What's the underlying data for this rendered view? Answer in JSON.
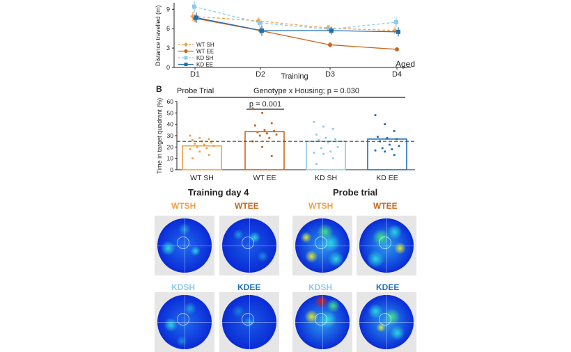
{
  "colors": {
    "wt_sh": "#f0a04b",
    "wt_ee": "#c8671e",
    "kd_sh": "#8ec9ec",
    "kd_ee": "#1f6fb4",
    "heat_low": "#0a2bd6",
    "heat_mid": "#2bd6e0",
    "heat_high": "#e01a1a"
  },
  "chart_data": [
    {
      "type": "line",
      "ylabel": "Distance travelled (m)",
      "xlabel": "Training",
      "categories": [
        "D1",
        "D2",
        "D3",
        "D4"
      ],
      "corner_label": "Aged",
      "ylim": [
        0,
        10
      ],
      "yticks": [
        0,
        3,
        6,
        9
      ],
      "series": [
        {
          "name": "WT SH",
          "values": [
            7.9,
            7.2,
            6.1,
            5.7
          ],
          "err": [
            0.7,
            0.6,
            0.5,
            0.6
          ],
          "color": "wt_sh",
          "marker": "diamond",
          "dashed": true
        },
        {
          "name": "WT EE",
          "values": [
            7.6,
            5.7,
            3.5,
            2.8
          ],
          "err": [
            0.6,
            0.5,
            0.4,
            0.2
          ],
          "color": "wt_ee",
          "marker": "circle",
          "dashed": false
        },
        {
          "name": "KD SH",
          "values": [
            9.4,
            6.9,
            5.9,
            7.0
          ],
          "err": [
            0.9,
            0.7,
            0.7,
            0.8
          ],
          "color": "kd_sh",
          "marker": "square",
          "dashed": true
        },
        {
          "name": "KD EE",
          "values": [
            7.7,
            5.7,
            5.7,
            5.5
          ],
          "err": [
            0.8,
            0.8,
            0.6,
            0.7
          ],
          "color": "kd_ee",
          "marker": "square",
          "dashed": false
        }
      ]
    },
    {
      "type": "bar",
      "panel_label": "B",
      "ylabel": "Time in target quadrant (%)",
      "categories": [
        "WT SH",
        "WT EE",
        "KD SH",
        "KD EE"
      ],
      "values": [
        21,
        33.5,
        25,
        27
      ],
      "ylim": [
        0,
        60
      ],
      "yticks": [
        0,
        10,
        20,
        30,
        40,
        50,
        60
      ],
      "chance_line": 25,
      "annotation_probe": "Probe Trial",
      "annotation_interaction": "Genotype x Housing; p = 0.030",
      "annotation_pair": "p = 0.001",
      "colors": [
        "wt_sh",
        "wt_ee",
        "kd_sh",
        "kd_ee"
      ],
      "points": [
        [
          30,
          28,
          27,
          26,
          25,
          24,
          23,
          22,
          21,
          20,
          19,
          18,
          16,
          13,
          10
        ],
        [
          54,
          50,
          41,
          39,
          35,
          34,
          33,
          32,
          31,
          30,
          28,
          25,
          20,
          12
        ],
        [
          42,
          38,
          36,
          31,
          28,
          27,
          26,
          24,
          20,
          19,
          16,
          15,
          14,
          10,
          5
        ],
        [
          48,
          40,
          34,
          29,
          28,
          27,
          25,
          22,
          21,
          19,
          18,
          17,
          16,
          13
        ]
      ]
    }
  ],
  "heatmaps": {
    "training_title": "Training day 4",
    "probe_title": "Probe trial",
    "labels": {
      "t_wtsh": "WTSH",
      "t_wtee": "WTEE",
      "t_kdsh": "KDSH",
      "t_kdee": "KDEE",
      "p_wtsh": "WTSH",
      "p_wtee": "WTEE",
      "p_kdsh": "KDSH",
      "p_kdee": "KDEE"
    }
  }
}
